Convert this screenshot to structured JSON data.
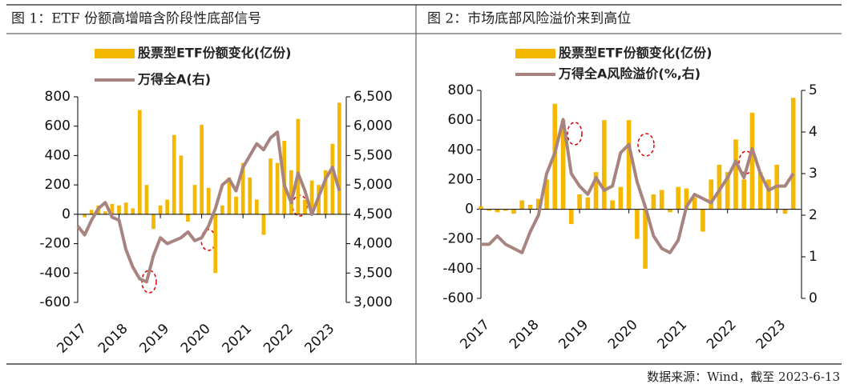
{
  "chart_data": [
    {
      "type": "bar-line",
      "title": "图 1：ETF 份额高增暗含阶段性底部信号",
      "xlim": [
        2017,
        2023.5
      ],
      "xticks": [
        2017,
        2018,
        2019,
        2020,
        2021,
        2022,
        2023
      ],
      "x": [
        2017.0,
        2017.167,
        2017.333,
        2017.5,
        2017.667,
        2017.833,
        2018.0,
        2018.167,
        2018.333,
        2018.5,
        2018.667,
        2018.833,
        2019.0,
        2019.167,
        2019.333,
        2019.5,
        2019.667,
        2019.833,
        2020.0,
        2020.167,
        2020.333,
        2020.5,
        2020.667,
        2020.833,
        2021.0,
        2021.167,
        2021.333,
        2021.5,
        2021.667,
        2021.833,
        2022.0,
        2022.167,
        2022.333,
        2022.5,
        2022.667,
        2022.833,
        2023.0,
        2023.167,
        2023.333
      ],
      "ylim": [
        -600,
        800
      ],
      "yticks": [
        -600,
        -400,
        -200,
        0,
        200,
        400,
        600,
        800
      ],
      "y2lim": [
        3000,
        6500
      ],
      "y2ticks": [
        {
          "value": 3000,
          "label": "3,000"
        },
        {
          "value": 3500,
          "label": "3,500"
        },
        {
          "value": 4000,
          "label": "4,000"
        },
        {
          "value": 4500,
          "label": "4,500"
        },
        {
          "value": 5000,
          "label": "5,000"
        },
        {
          "value": 5500,
          "label": "5,500"
        },
        {
          "value": 6000,
          "label": "6,000"
        },
        {
          "value": 6500,
          "label": "6,500"
        }
      ],
      "series": [
        {
          "name": "股票型ETF份额变化(亿份)",
          "kind": "bar",
          "color": "#f5b800",
          "values": [
            0,
            -20,
            30,
            60,
            20,
            70,
            60,
            80,
            40,
            710,
            200,
            -100,
            60,
            100,
            540,
            400,
            -50,
            200,
            610,
            180,
            -400,
            60,
            250,
            120,
            350,
            250,
            100,
            -140,
            380,
            350,
            500,
            300,
            650,
            100,
            230,
            200,
            300,
            480,
            760
          ]
        },
        {
          "name": "万得全A(右)",
          "kind": "line",
          "axis": "y2",
          "color": "#a88480",
          "values": [
            4300,
            4150,
            4400,
            4600,
            4700,
            4450,
            4400,
            3900,
            3600,
            3400,
            3350,
            3800,
            4100,
            4000,
            4050,
            4100,
            4200,
            4050,
            4100,
            4300,
            4600,
            5000,
            5100,
            4900,
            5300,
            5500,
            5700,
            5600,
            5800,
            5900,
            5000,
            4700,
            5200,
            4900,
            4500,
            4800,
            5100,
            5300,
            4900
          ]
        }
      ]
    },
    {
      "type": "bar-line",
      "title": "图 2：市场底部风险溢价来到高位",
      "xlim": [
        2017,
        2023.5
      ],
      "xticks": [
        2017,
        2018,
        2019,
        2020,
        2021,
        2022,
        2023
      ],
      "x": [
        2017.0,
        2017.167,
        2017.333,
        2017.5,
        2017.667,
        2017.833,
        2018.0,
        2018.167,
        2018.333,
        2018.5,
        2018.667,
        2018.833,
        2019.0,
        2019.167,
        2019.333,
        2019.5,
        2019.667,
        2019.833,
        2020.0,
        2020.167,
        2020.333,
        2020.5,
        2020.667,
        2020.833,
        2021.0,
        2021.167,
        2021.333,
        2021.5,
        2021.667,
        2021.833,
        2022.0,
        2022.167,
        2022.333,
        2022.5,
        2022.667,
        2022.833,
        2023.0,
        2023.167,
        2023.333
      ],
      "ylim": [
        -600,
        800
      ],
      "yticks": [
        -600,
        -400,
        -200,
        0,
        200,
        400,
        600,
        800
      ],
      "y2lim": [
        0,
        5
      ],
      "y2ticks": [
        0,
        1,
        2,
        3,
        4,
        5
      ],
      "series": [
        {
          "name": "股票型ETF份额变化(亿份)",
          "kind": "bar",
          "color": "#f5b800",
          "values": [
            20,
            -10,
            -20,
            -10,
            -30,
            60,
            30,
            70,
            200,
            710,
            600,
            -100,
            100,
            80,
            250,
            600,
            60,
            150,
            600,
            -200,
            -400,
            100,
            130,
            -20,
            150,
            140,
            80,
            -150,
            200,
            300,
            250,
            470,
            200,
            650,
            250,
            200,
            300,
            -30,
            750
          ]
        },
        {
          "name": "万得全A风险溢价(%,右)",
          "kind": "line",
          "axis": "y2",
          "color": "#a88480",
          "values": [
            1.3,
            1.3,
            1.5,
            1.3,
            1.2,
            1.1,
            1.6,
            2.0,
            3.0,
            3.5,
            4.3,
            3.0,
            2.7,
            2.5,
            2.9,
            2.6,
            2.7,
            3.5,
            3.7,
            2.8,
            2.2,
            1.5,
            1.2,
            1.1,
            1.4,
            2.2,
            2.5,
            2.4,
            2.3,
            2.6,
            2.9,
            3.3,
            2.9,
            3.6,
            3.0,
            2.6,
            2.7,
            2.7,
            3.0
          ]
        }
      ]
    }
  ],
  "source": "数据来源：Wind，截至 2023-6-13"
}
